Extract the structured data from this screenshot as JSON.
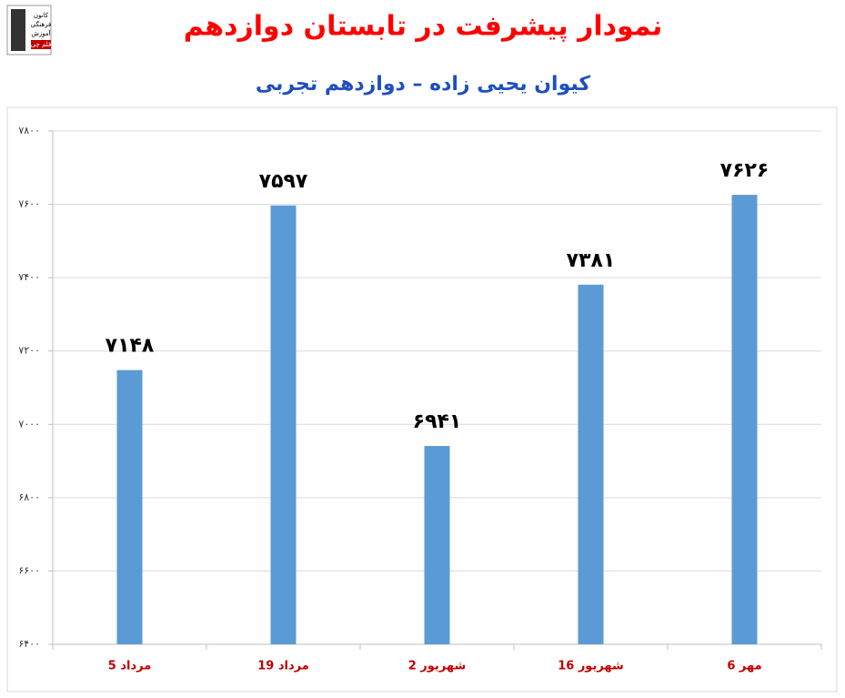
{
  "logo": [
    "کانون",
    "فرهنگی",
    "آموزش",
    "قلم چی"
  ],
  "chart_data": {
    "type": "bar",
    "title": "نمودار پیشرفت در تابستان دوازدهم",
    "subtitle": "کیوان یحیی زاده – دوازدهم تجربی",
    "categories": [
      "5 مرداد",
      "19 مرداد",
      "2 شهریور",
      "16 شهریور",
      "6 مهر"
    ],
    "values": [
      7148,
      7597,
      6941,
      7381,
      7626
    ],
    "value_labels": [
      "۷۱۴۸",
      "۷۵۹۷",
      "۶۹۴۱",
      "۷۳۸۱",
      "۷۶۲۶"
    ],
    "color": "#5b9bd5",
    "ylim": [
      6400,
      7800
    ],
    "yticks": [
      {
        "value": 6400,
        "label": "۶۴۰۰"
      },
      {
        "value": 6600,
        "label": "۶۶۰۰"
      },
      {
        "value": 6800,
        "label": "۶۸۰۰"
      },
      {
        "value": 7000,
        "label": "۷۰۰۰"
      },
      {
        "value": 7200,
        "label": "۷۲۰۰"
      },
      {
        "value": 7400,
        "label": "۷۴۰۰"
      },
      {
        "value": 7600,
        "label": "۷۶۰۰"
      },
      {
        "value": 7800,
        "label": "۷۸۰۰"
      }
    ],
    "grid": true
  }
}
